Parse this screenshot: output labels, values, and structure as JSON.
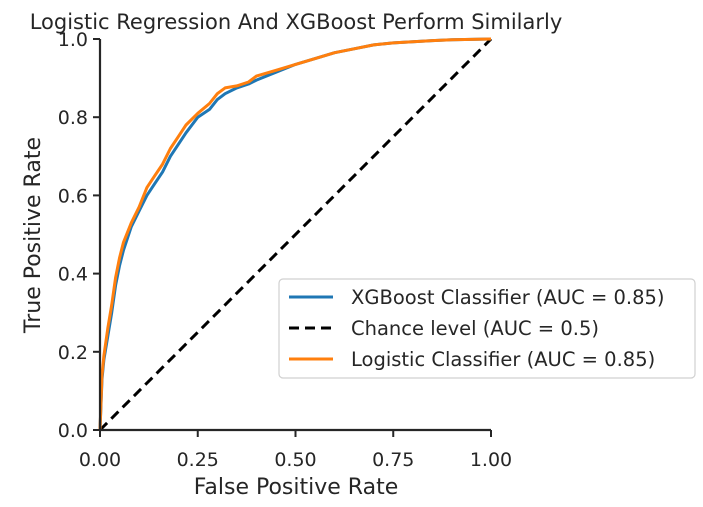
{
  "chart_data": {
    "type": "line",
    "title": "Logistic Regression And XGBoost Perform Similarly",
    "xlabel": "False Positive Rate",
    "ylabel": "True Positive Rate",
    "xlim": [
      0,
      1
    ],
    "ylim": [
      0,
      1
    ],
    "xticks": [
      "0.00",
      "0.25",
      "0.50",
      "0.75",
      "1.00"
    ],
    "yticks": [
      "0.0",
      "0.2",
      "0.4",
      "0.6",
      "0.8",
      "1.0"
    ],
    "grid": false,
    "legend_position": "lower-right",
    "series": [
      {
        "name": "XGBoost Classifier (AUC = 0.85)",
        "color": "#1f77b4",
        "style": "solid",
        "x": [
          0,
          0.005,
          0.01,
          0.02,
          0.03,
          0.04,
          0.05,
          0.06,
          0.08,
          0.1,
          0.12,
          0.14,
          0.16,
          0.18,
          0.2,
          0.22,
          0.25,
          0.28,
          0.3,
          0.32,
          0.35,
          0.38,
          0.4,
          0.45,
          0.5,
          0.55,
          0.6,
          0.65,
          0.7,
          0.75,
          0.8,
          0.85,
          0.9,
          0.95,
          1.0
        ],
        "y": [
          0,
          0.13,
          0.18,
          0.24,
          0.3,
          0.37,
          0.42,
          0.46,
          0.52,
          0.56,
          0.6,
          0.63,
          0.66,
          0.7,
          0.73,
          0.76,
          0.8,
          0.82,
          0.845,
          0.86,
          0.875,
          0.885,
          0.895,
          0.915,
          0.935,
          0.95,
          0.965,
          0.975,
          0.985,
          0.99,
          0.993,
          0.996,
          0.998,
          0.999,
          1.0
        ]
      },
      {
        "name": "Chance level (AUC = 0.5)",
        "color": "#000000",
        "style": "dashed",
        "x": [
          0,
          1
        ],
        "y": [
          0,
          1
        ]
      },
      {
        "name": "Logistic Classifier (AUC = 0.85)",
        "color": "#ff7f0e",
        "style": "solid",
        "x": [
          0,
          0.005,
          0.01,
          0.02,
          0.03,
          0.04,
          0.05,
          0.06,
          0.08,
          0.1,
          0.12,
          0.14,
          0.16,
          0.18,
          0.2,
          0.22,
          0.25,
          0.28,
          0.3,
          0.32,
          0.35,
          0.38,
          0.4,
          0.45,
          0.5,
          0.55,
          0.6,
          0.65,
          0.7,
          0.75,
          0.8,
          0.85,
          0.9,
          0.95,
          1.0
        ],
        "y": [
          0,
          0.14,
          0.19,
          0.26,
          0.32,
          0.39,
          0.44,
          0.48,
          0.53,
          0.57,
          0.62,
          0.65,
          0.68,
          0.72,
          0.75,
          0.78,
          0.81,
          0.835,
          0.86,
          0.875,
          0.88,
          0.89,
          0.905,
          0.92,
          0.935,
          0.95,
          0.965,
          0.975,
          0.985,
          0.99,
          0.993,
          0.996,
          0.998,
          0.999,
          1.0
        ]
      }
    ]
  }
}
